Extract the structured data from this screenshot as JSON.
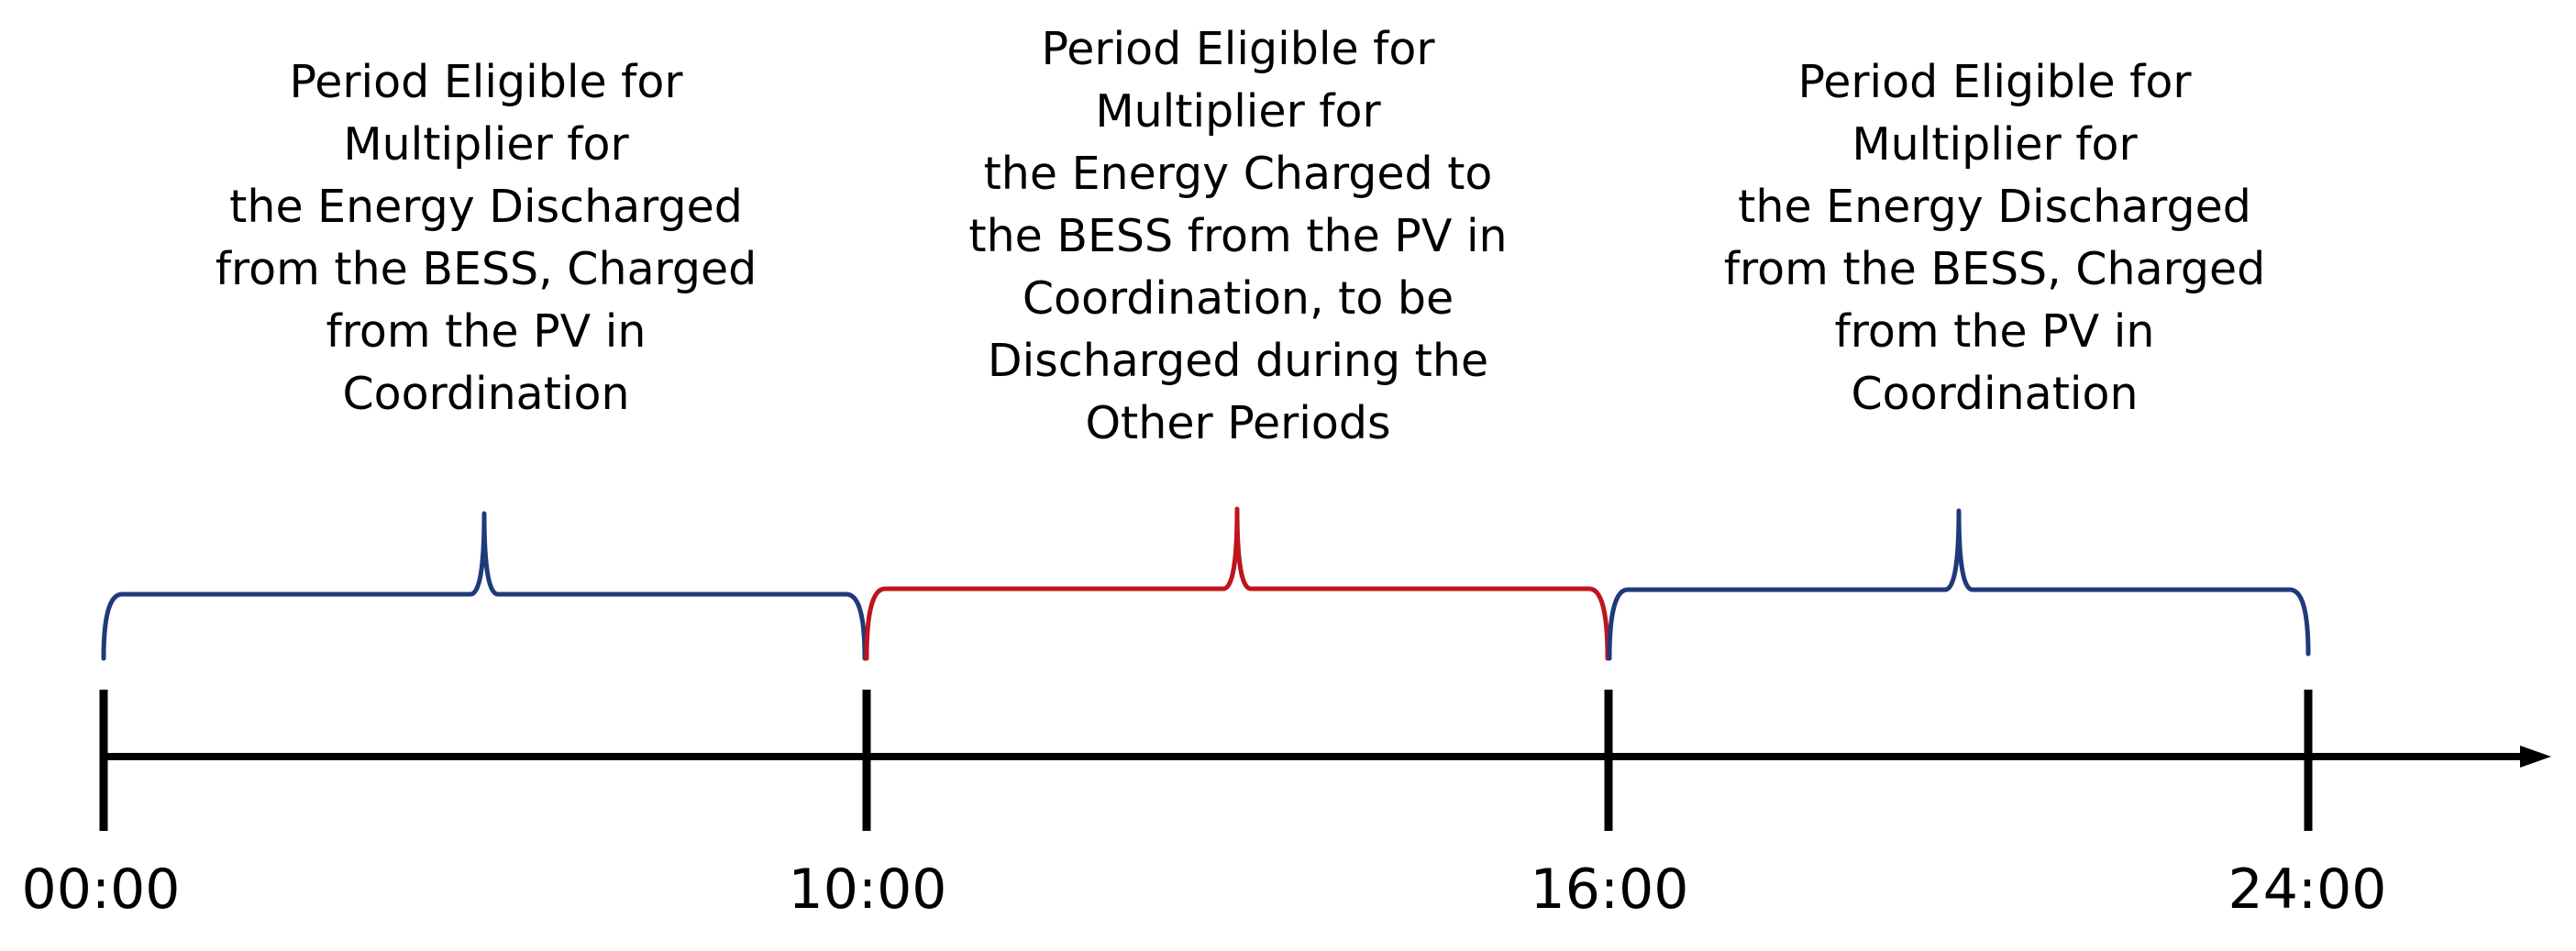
{
  "colors": {
    "blue": "#1f3a7a",
    "red": "#c0141c",
    "axis": "#000000"
  },
  "periods": [
    {
      "color": "blue",
      "lines": [
        "Period Eligible for",
        "Multiplier for",
        "the Energy Discharged",
        "from the BESS, Charged",
        "from the PV in",
        "Coordination"
      ]
    },
    {
      "color": "red",
      "lines": [
        "Period Eligible for",
        "Multiplier for",
        "the Energy Charged to",
        "the BESS from the PV in",
        "Coordination, to be",
        "Discharged during the",
        "Other Periods"
      ]
    },
    {
      "color": "blue",
      "lines": [
        "Period Eligible for",
        "Multiplier for",
        "the Energy Discharged",
        "from the BESS, Charged",
        "from the PV in",
        "Coordination"
      ]
    }
  ],
  "ticks": [
    "00:00",
    "10:00",
    "16:00",
    "24:00"
  ]
}
